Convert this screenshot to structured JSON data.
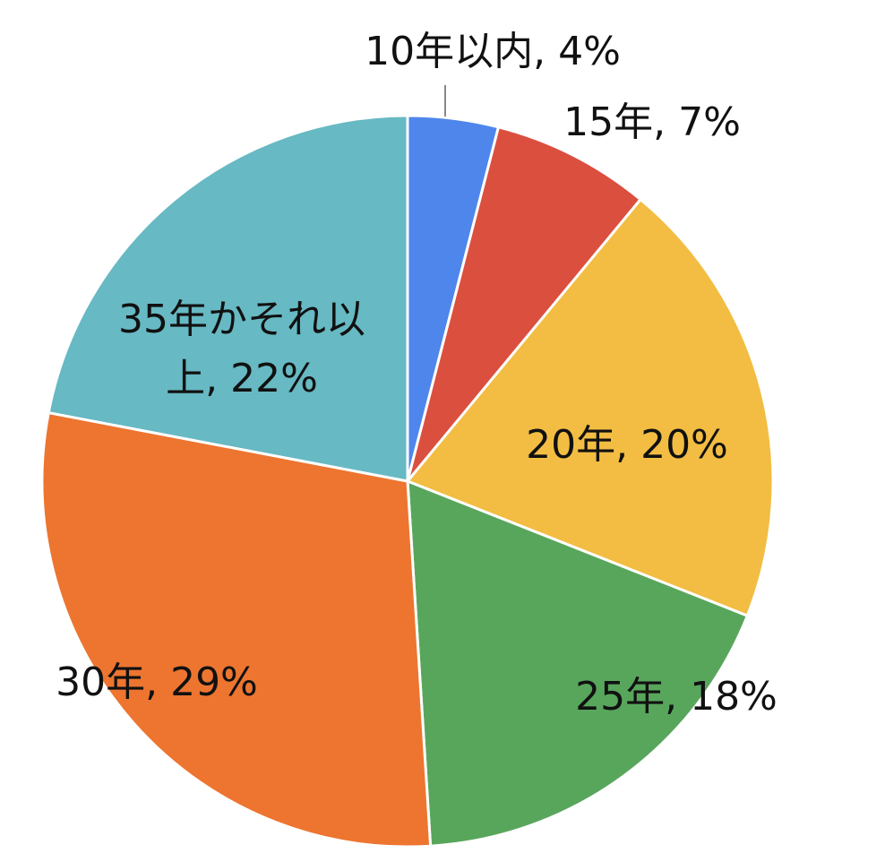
{
  "chart_data": {
    "type": "pie",
    "values": [
      4,
      7,
      20,
      18,
      29,
      22
    ],
    "value_labels": [
      "10年以内, 4%",
      "15年, 7%",
      "20年, 20%",
      "25年, 18%",
      "30年, 29%",
      "35年かそれ以上, 22%"
    ],
    "colors": [
      "#4f86ec",
      "#db4f3f",
      "#f2bd42",
      "#58a65c",
      "#ed7530",
      "#67b9c3"
    ]
  }
}
